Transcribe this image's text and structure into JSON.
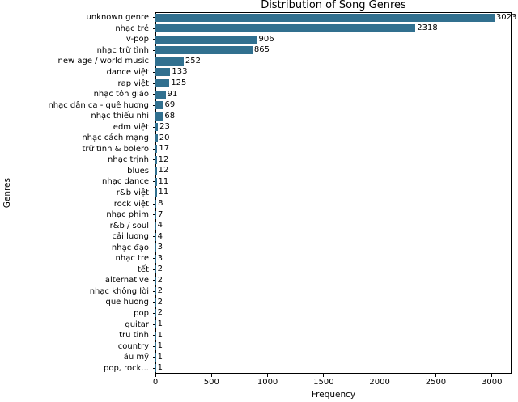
{
  "chart_data": {
    "type": "bar",
    "orientation": "horizontal",
    "title": "Distribution of Song Genres",
    "xlabel": "Frequency",
    "ylabel": "Genres",
    "xlim": [
      0,
      3175
    ],
    "xticks": [
      0,
      500,
      1000,
      1500,
      2000,
      2500,
      3000
    ],
    "grid": false,
    "legend": "none",
    "bar_color": "#31708f",
    "categories": [
      "unknown genre",
      "nhạc trẻ",
      "v-pop",
      "nhạc trữ tình",
      "new age / world music",
      "dance việt",
      "rap việt",
      "nhạc tôn giáo",
      "nhạc dân ca - quê hương",
      "nhạc thiếu nhi",
      "edm việt",
      "nhạc cách mạng",
      "trữ tình & bolero",
      "nhạc trịnh",
      "blues",
      "nhạc dance",
      "r&b việt",
      "rock việt",
      "nhạc phim",
      "r&b / soul",
      "cải lương",
      "nhạc đạo",
      "nhạc tre",
      "tết",
      "alternative",
      "nhạc không lời",
      "que huong",
      "pop",
      "guitar",
      "tru tinh",
      "country",
      "âu mỹ",
      "pop, rock..."
    ],
    "values": [
      3023,
      2318,
      906,
      865,
      252,
      133,
      125,
      91,
      69,
      68,
      23,
      20,
      17,
      12,
      12,
      11,
      11,
      8,
      7,
      4,
      4,
      3,
      3,
      2,
      2,
      2,
      2,
      2,
      1,
      1,
      1,
      1,
      1
    ]
  }
}
